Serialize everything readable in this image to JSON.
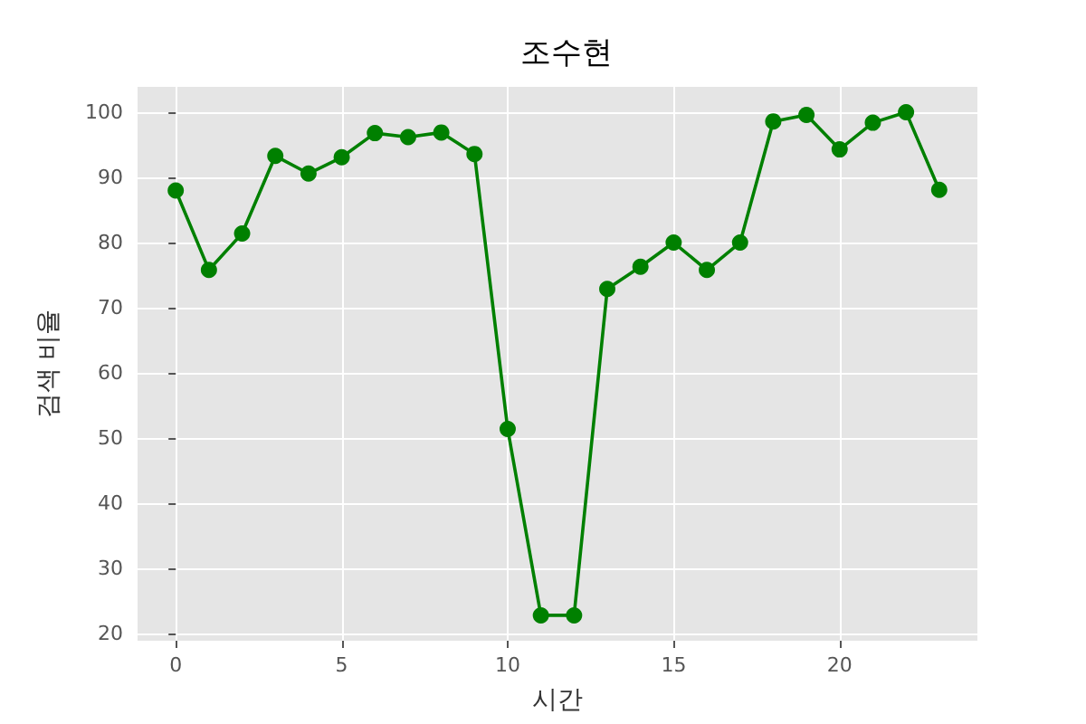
{
  "chart_data": {
    "type": "line",
    "title": "조수현",
    "xlabel": "시간",
    "ylabel": "검색 비율",
    "x": [
      0,
      1,
      2,
      3,
      4,
      5,
      6,
      7,
      8,
      9,
      10,
      11,
      12,
      13,
      14,
      15,
      16,
      17,
      18,
      19,
      20,
      21,
      22,
      23
    ],
    "series": [
      {
        "color": "#008000",
        "values": [
          88,
          75.8,
          81.4,
          93.3,
          90.6,
          93.1,
          96.8,
          96.2,
          96.9,
          93.6,
          51.4,
          22.8,
          22.8,
          72.9,
          76.3,
          80,
          75.8,
          80,
          98.6,
          99.6,
          94.3,
          98.4,
          100,
          88.1
        ]
      }
    ],
    "xlim": [
      -1.15,
      24.15
    ],
    "xticks": [
      0,
      5,
      10,
      15,
      20
    ],
    "ylim": [
      18.9,
      103.9
    ],
    "yticks": [
      20,
      30,
      40,
      50,
      60,
      70,
      80,
      90,
      100
    ],
    "grid": true,
    "marker": "circle",
    "line_style": "solid"
  }
}
